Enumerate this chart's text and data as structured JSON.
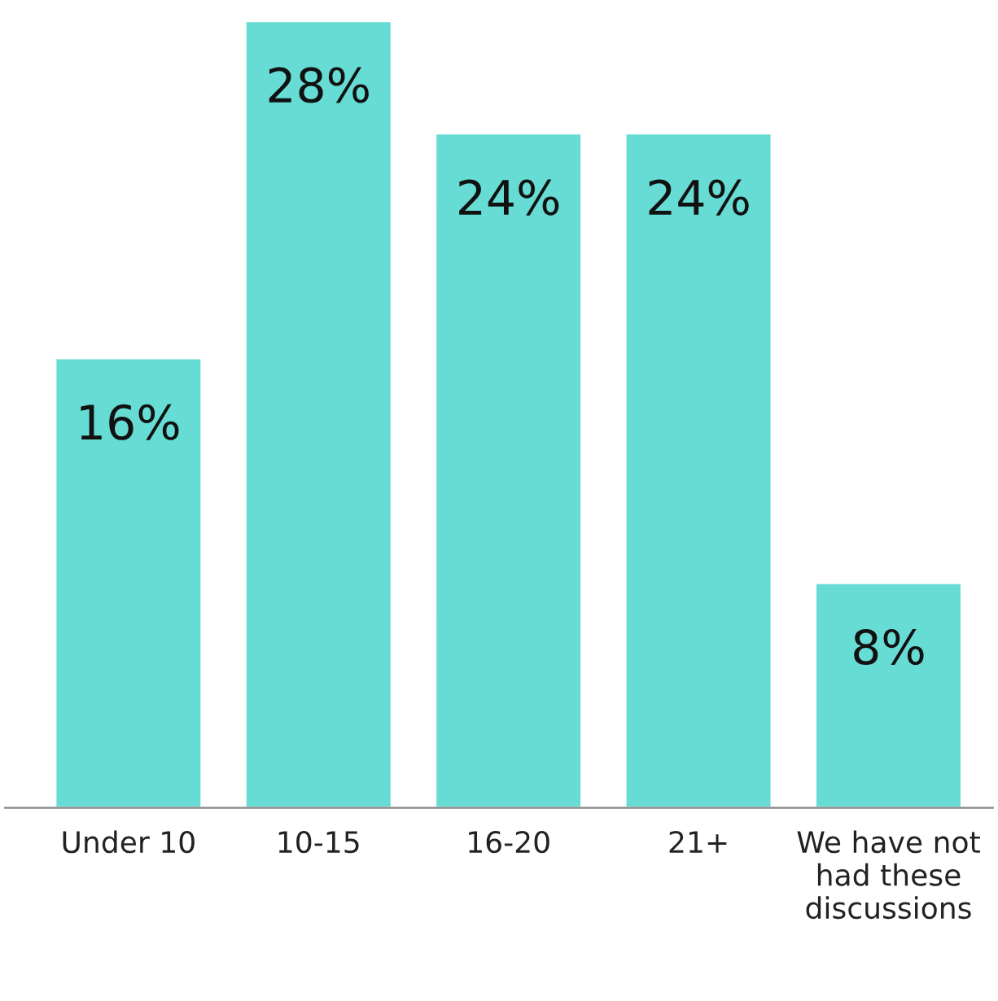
{
  "chart_data": {
    "type": "bar",
    "categories": [
      "Under 10",
      "10-15",
      "16-20",
      "21+",
      "We have not had these discussions"
    ],
    "values": [
      16,
      28,
      24,
      24,
      8
    ],
    "value_labels": [
      "16%",
      "28%",
      "24%",
      "24%",
      "8%"
    ],
    "color": "#66dcd4",
    "ylim": [
      0,
      28
    ],
    "grid": false,
    "legend": false
  }
}
